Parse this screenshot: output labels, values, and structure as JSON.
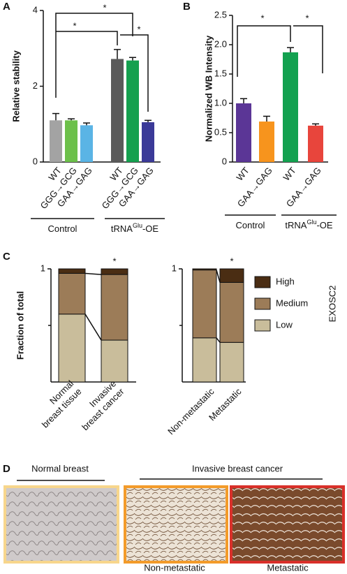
{
  "figure": {
    "panel_letters": [
      "A",
      "B",
      "C",
      "D"
    ]
  },
  "chart_data": [
    {
      "type": "bar",
      "ylabel": "Relative stability",
      "categories": [
        "WT",
        "GGG→GCG",
        "GAA→GAG",
        "WT",
        "GGG→GCG",
        "GAA→GAG"
      ],
      "values": [
        1.1,
        1.1,
        0.97,
        2.72,
        2.68,
        1.05
      ],
      "errors": [
        0.18,
        0.04,
        0.06,
        0.25,
        0.08,
        0.05
      ],
      "colors": [
        "#a3a3a3",
        "#6cc04a",
        "#5ab4e5",
        "#5a5a5a",
        "#15a04f",
        "#3b3a98"
      ],
      "groups": [
        {
          "name": "Control"
        },
        {
          "name": "tRNA",
          "sup": "Glu",
          "suffix": "-OE"
        }
      ],
      "annotations": [
        "*",
        "*",
        "*"
      ],
      "ylim": [
        0,
        4
      ],
      "yticks": [
        0,
        2,
        4
      ]
    },
    {
      "type": "bar",
      "ylabel": "Normalized WB Intensity",
      "categories": [
        "WT",
        "GAA→GAG",
        "WT",
        "GAA→GAG"
      ],
      "values": [
        1.0,
        0.69,
        1.87,
        0.62
      ],
      "errors": [
        0.08,
        0.09,
        0.08,
        0.03
      ],
      "colors": [
        "#5b3696",
        "#f7941d",
        "#13a150",
        "#e8453c"
      ],
      "groups": [
        {
          "name": "Control"
        },
        {
          "name": "tRNA",
          "sup": "Glu",
          "suffix": "-OE"
        }
      ],
      "annotations": [
        "*",
        "*"
      ],
      "ylim": [
        0,
        2.5
      ],
      "yticks": [
        0,
        0.5,
        {
          "value": 1,
          "label": "1.0"
        },
        1.5,
        {
          "value": 2,
          "label": "2.0"
        },
        2.5
      ]
    },
    {
      "type": "stacked_bar",
      "ylabel": "Fraction of total",
      "subplots": [
        {
          "categories": [
            [
              "Normal",
              "breast tissue"
            ],
            [
              "Invasive",
              "breast cancer"
            ]
          ],
          "annotation": "*"
        },
        {
          "categories": [
            [
              "Non-metastatic"
            ],
            [
              "Metastatic"
            ]
          ],
          "annotation": "*"
        }
      ],
      "series": [
        {
          "name": "Low",
          "color": "#c9bd9b",
          "values": [
            [
              0.6,
              0.37
            ],
            [
              0.39,
              0.35
            ]
          ]
        },
        {
          "name": "Medium",
          "color": "#9c7c58",
          "values": [
            [
              0.36,
              0.58
            ],
            [
              0.6,
              0.53
            ]
          ]
        },
        {
          "name": "High",
          "color": "#4a2d13",
          "values": [
            [
              0.04,
              0.05
            ],
            [
              0.01,
              0.12
            ]
          ]
        }
      ],
      "legend_title": "EXOSC2",
      "ylim": [
        0,
        1
      ],
      "yticks": [
        1
      ]
    }
  ],
  "panel_d": {
    "group_labels": [
      "Normal breast",
      "Invasive breast cancer"
    ],
    "image_labels": [
      "Non-metastatic",
      "Metastatic"
    ]
  }
}
